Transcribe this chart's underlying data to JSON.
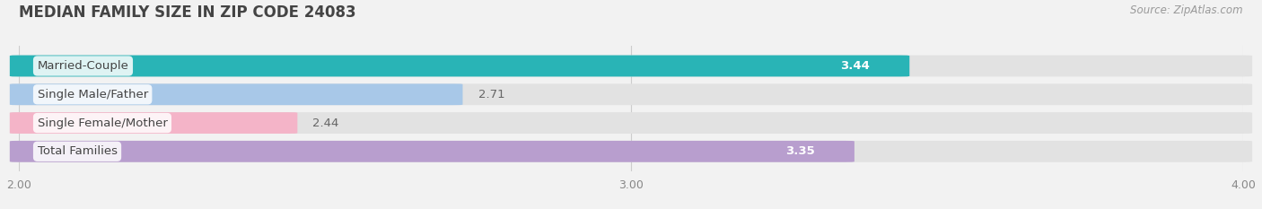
{
  "title": "MEDIAN FAMILY SIZE IN ZIP CODE 24083",
  "source": "Source: ZipAtlas.com",
  "categories": [
    "Married-Couple",
    "Single Male/Father",
    "Single Female/Mother",
    "Total Families"
  ],
  "values": [
    3.44,
    2.71,
    2.44,
    3.35
  ],
  "colors": [
    "#29b4b6",
    "#a8c8e8",
    "#f4b4c8",
    "#b89ece"
  ],
  "label_colors": [
    "#ffffff",
    "#666666",
    "#666666",
    "#ffffff"
  ],
  "value_inside": [
    true,
    false,
    false,
    true
  ],
  "xlim": [
    2.0,
    4.0
  ],
  "xticks": [
    2.0,
    3.0,
    4.0
  ],
  "bar_height": 0.72,
  "bar_gap": 1.0,
  "background_color": "#f2f2f2",
  "bar_bg_color": "#e2e2e2",
  "title_fontsize": 12,
  "label_fontsize": 9.5,
  "value_fontsize": 9.5,
  "tick_fontsize": 9,
  "source_fontsize": 8.5
}
